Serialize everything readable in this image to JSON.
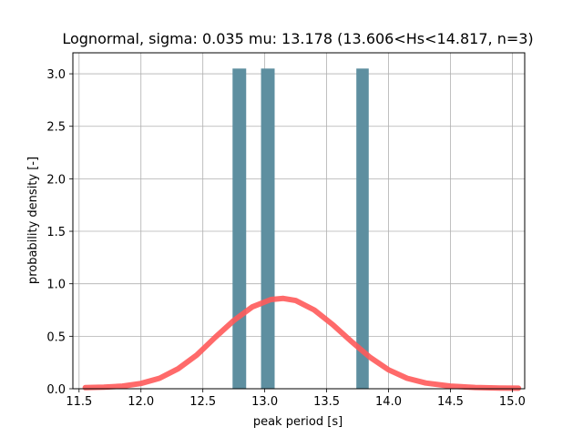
{
  "chart_data": {
    "type": "bar",
    "title": "Lognormal, sigma: 0.035 mu: 13.178 (13.606<Hs<14.817, n=3)",
    "xlabel": "peak period [s]",
    "ylabel": "probability density [-]",
    "xlim": [
      11.45,
      15.1
    ],
    "ylim": [
      0.0,
      3.2
    ],
    "xticks": [
      "11.5",
      "12.0",
      "12.5",
      "13.0",
      "13.5",
      "14.0",
      "14.5",
      "15.0"
    ],
    "yticks": [
      "0.0",
      "0.5",
      "1.0",
      "1.5",
      "2.0",
      "2.5",
      "3.0"
    ],
    "grid": true,
    "histogram": {
      "color": "#5e8fa0",
      "bars": [
        {
          "x0": 12.74,
          "x1": 12.85,
          "value": 3.05
        },
        {
          "x0": 12.97,
          "x1": 13.08,
          "value": 3.05
        },
        {
          "x0": 13.74,
          "x1": 13.84,
          "value": 3.05
        }
      ]
    },
    "pdf_curve": {
      "color": "#ff5a5a",
      "x": [
        11.55,
        11.7,
        11.85,
        12.0,
        12.15,
        12.3,
        12.45,
        12.6,
        12.75,
        12.9,
        13.05,
        13.15,
        13.25,
        13.4,
        13.55,
        13.7,
        13.85,
        14.0,
        14.15,
        14.3,
        14.5,
        14.7,
        14.9,
        15.05
      ],
      "y": [
        0.01,
        0.015,
        0.025,
        0.05,
        0.1,
        0.19,
        0.32,
        0.49,
        0.65,
        0.78,
        0.85,
        0.86,
        0.84,
        0.75,
        0.61,
        0.45,
        0.3,
        0.18,
        0.1,
        0.055,
        0.025,
        0.012,
        0.007,
        0.005
      ]
    }
  }
}
